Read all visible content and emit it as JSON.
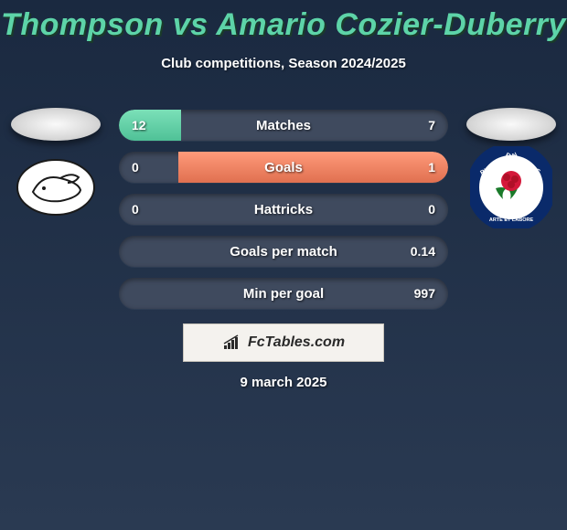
{
  "header": {
    "title": "Thompson vs Amario Cozier-Duberry",
    "title_color": "#5dd4a8",
    "subtitle": "Club competitions, Season 2024/2025"
  },
  "left_player_image": "ellipse-placeholder",
  "right_player_image": "ellipse-placeholder",
  "left_crest": "derby-county",
  "right_crest": "blackburn-rovers",
  "bars": {
    "track_color": "#3f4a5e",
    "left_fill_color": "#5ccfa4",
    "right_fill_color": "#ef8262",
    "rows": [
      {
        "label": "Matches",
        "left": "12",
        "right": "7",
        "left_pct": 19,
        "right_pct": 0
      },
      {
        "label": "Goals",
        "left": "0",
        "right": "1",
        "left_pct": 0,
        "right_pct": 82
      },
      {
        "label": "Hattricks",
        "left": "0",
        "right": "0",
        "left_pct": 0,
        "right_pct": 0
      },
      {
        "label": "Goals per match",
        "left": "",
        "right": "0.14",
        "left_pct": 0,
        "right_pct": 0
      },
      {
        "label": "Min per goal",
        "left": "",
        "right": "997",
        "left_pct": 0,
        "right_pct": 0
      }
    ]
  },
  "footer": {
    "brand": "FcTables.com",
    "date": "9 march 2025"
  },
  "colors": {
    "bg_top": "#1a2940",
    "bg_bottom": "#2a3a52",
    "text": "#ffffff"
  }
}
